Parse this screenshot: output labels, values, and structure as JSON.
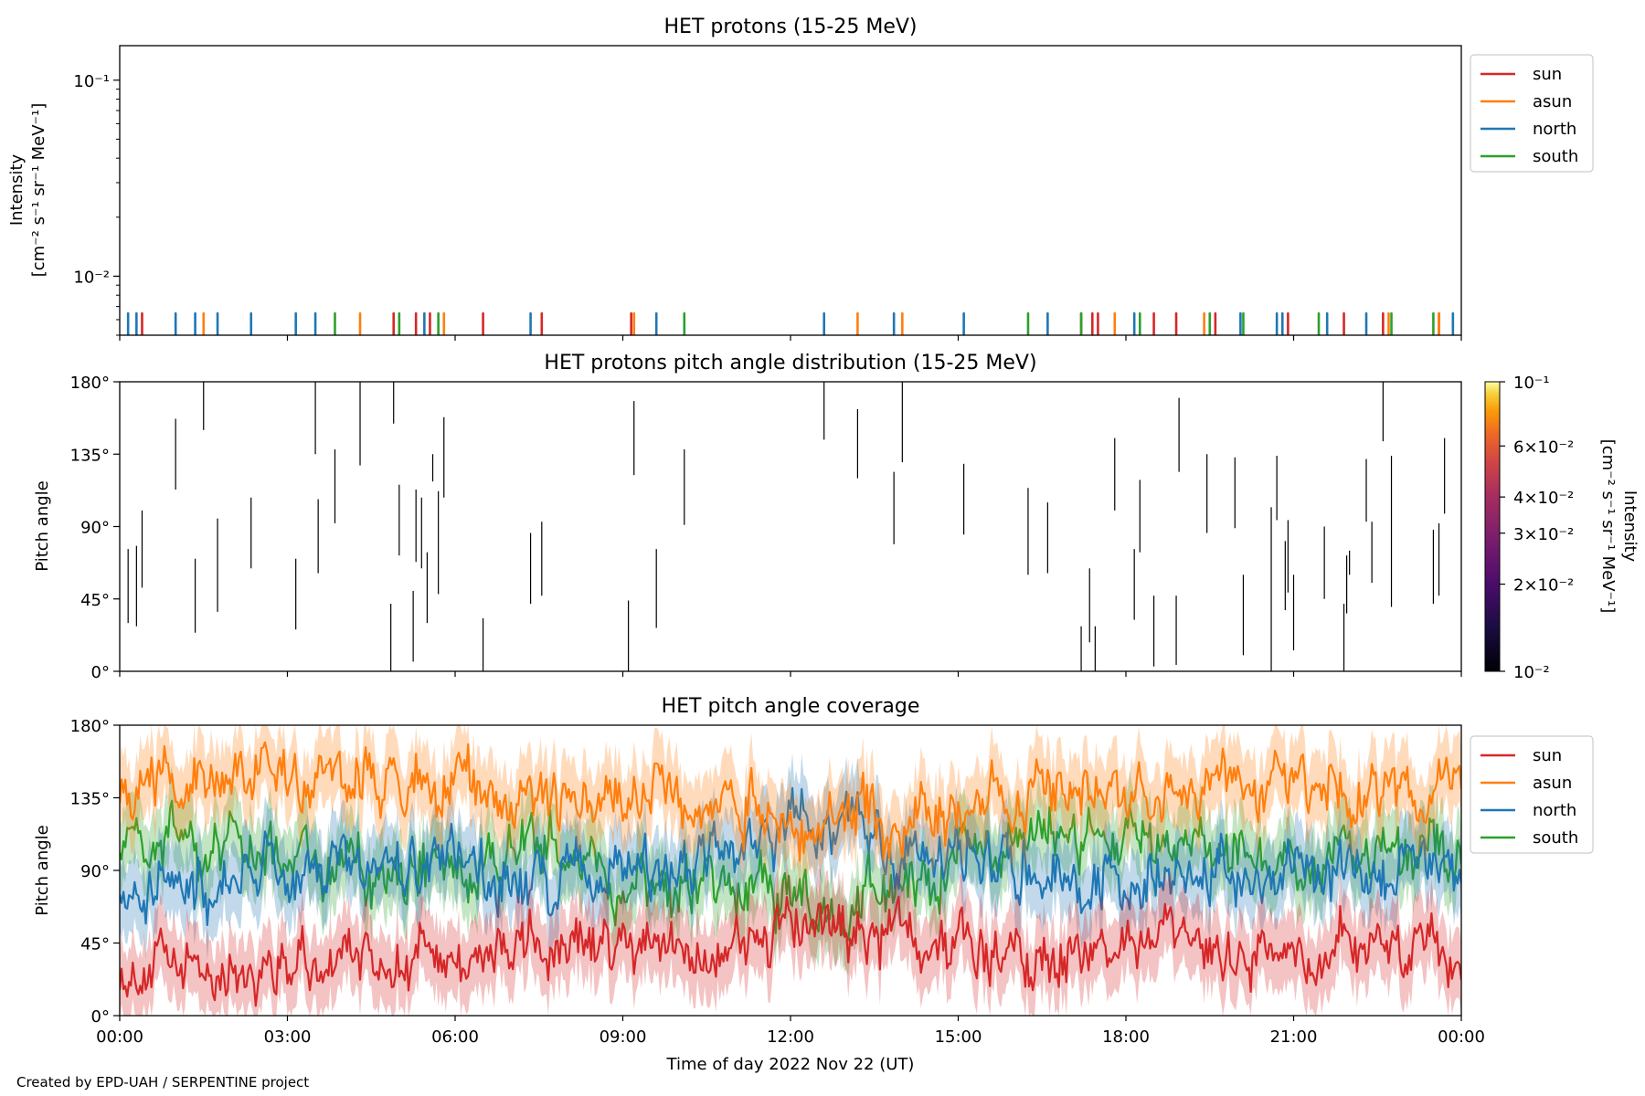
{
  "footer": "Created by EPD-UAH / SERPENTINE project",
  "colors": {
    "sun": "#d62728",
    "asun": "#ff7f0e",
    "north": "#1f77b4",
    "south": "#2ca02c"
  },
  "chart_data": [
    {
      "type": "line",
      "title": "HET protons (15-25 MeV)",
      "ylabel": [
        "Intensity",
        "[cm⁻² s⁻¹ sr⁻¹ MeV⁻¹]"
      ],
      "yscale": "log",
      "ylim": [
        0.005,
        0.15
      ],
      "yticks": [
        {
          "v": 0.1,
          "label": "10⁻¹"
        },
        {
          "v": 0.01,
          "label": "10⁻²"
        }
      ],
      "xlim_hours": [
        0,
        24
      ],
      "legend": {
        "position": "outside-right-top",
        "entries": [
          "sun",
          "asun",
          "north",
          "south"
        ]
      },
      "series": [
        {
          "name": "sun",
          "color": "#d62728",
          "spike_times_hours": [
            0.4,
            4.9,
            5.3,
            5.55,
            6.5,
            7.55,
            9.15,
            17.2,
            17.4,
            17.5,
            18.5,
            18.9,
            19.6,
            20.9,
            21.9,
            22.6,
            23.6
          ]
        },
        {
          "name": "asun",
          "color": "#ff7f0e",
          "spike_times_hours": [
            1.5,
            4.3,
            5.8,
            9.2,
            13.2,
            14.0,
            17.8,
            19.4,
            22.7,
            23.6
          ]
        },
        {
          "name": "north",
          "color": "#1f77b4",
          "spike_times_hours": [
            0.15,
            0.3,
            1.0,
            1.35,
            1.75,
            2.35,
            3.15,
            3.5,
            5.45,
            7.35,
            9.6,
            12.6,
            13.85,
            15.1,
            16.6,
            18.15,
            20.05,
            20.7,
            20.8,
            21.6,
            22.3,
            23.85
          ]
        },
        {
          "name": "south",
          "color": "#2ca02c",
          "spike_times_hours": [
            3.85,
            5.0,
            5.7,
            10.1,
            16.25,
            17.2,
            18.25,
            19.5,
            20.1,
            21.45,
            22.75,
            23.5
          ]
        }
      ],
      "spike_value": 0.0055
    },
    {
      "type": "heatmap",
      "title": "HET protons pitch angle distribution (15-25 MeV)",
      "ylabel": "Pitch angle",
      "ylim": [
        0,
        180
      ],
      "yticks": [
        "0°",
        "45°",
        "90°",
        "135°",
        "180°"
      ],
      "colorbar": {
        "label": [
          "Intensity",
          "[cm⁻² s⁻¹ sr⁻¹ MeV⁻¹]"
        ],
        "scale": "log",
        "range": [
          0.01,
          0.1
        ],
        "ticks": [
          {
            "v": 0.1,
            "label": "10⁻¹"
          },
          {
            "v": 0.06,
            "label": "6×10⁻²"
          },
          {
            "v": 0.04,
            "label": "4×10⁻²"
          },
          {
            "v": 0.03,
            "label": "3×10⁻²"
          },
          {
            "v": 0.02,
            "label": "2×10⁻²"
          },
          {
            "v": 0.01,
            "label": "10⁻²"
          }
        ],
        "colormap": "inferno"
      },
      "segments": [
        [
          0.15,
          30,
          76
        ],
        [
          0.3,
          28,
          78
        ],
        [
          0.4,
          52,
          100
        ],
        [
          1.0,
          113,
          157
        ],
        [
          1.35,
          24,
          70
        ],
        [
          1.5,
          150,
          180
        ],
        [
          1.75,
          37,
          95
        ],
        [
          2.35,
          64,
          108
        ],
        [
          3.15,
          26,
          70
        ],
        [
          3.5,
          135,
          180
        ],
        [
          3.55,
          61,
          107
        ],
        [
          3.85,
          92,
          138
        ],
        [
          4.3,
          128,
          180
        ],
        [
          4.85,
          0,
          42
        ],
        [
          4.9,
          154,
          180
        ],
        [
          5.0,
          72,
          116
        ],
        [
          5.25,
          6,
          50
        ],
        [
          5.3,
          68,
          113
        ],
        [
          5.4,
          64,
          108
        ],
        [
          5.5,
          30,
          74
        ],
        [
          5.6,
          118,
          135
        ],
        [
          5.7,
          48,
          112
        ],
        [
          5.8,
          108,
          158
        ],
        [
          6.5,
          0,
          33
        ],
        [
          7.35,
          42,
          86
        ],
        [
          7.55,
          47,
          93
        ],
        [
          9.1,
          0,
          44
        ],
        [
          9.2,
          122,
          168
        ],
        [
          9.6,
          27,
          76
        ],
        [
          10.1,
          91,
          138
        ],
        [
          12.6,
          144,
          180
        ],
        [
          13.2,
          120,
          163
        ],
        [
          13.85,
          79,
          124
        ],
        [
          14.0,
          130,
          180
        ],
        [
          15.1,
          85,
          129
        ],
        [
          16.25,
          60,
          114
        ],
        [
          16.6,
          61,
          105
        ],
        [
          17.2,
          0,
          28
        ],
        [
          17.35,
          18,
          64
        ],
        [
          17.45,
          0,
          28
        ],
        [
          17.8,
          100,
          145
        ],
        [
          18.15,
          32,
          76
        ],
        [
          18.25,
          74,
          119
        ],
        [
          18.5,
          3,
          47
        ],
        [
          18.9,
          4,
          47
        ],
        [
          18.95,
          124,
          170
        ],
        [
          19.45,
          86,
          135
        ],
        [
          19.95,
          89,
          133
        ],
        [
          20.1,
          10,
          60
        ],
        [
          20.6,
          0,
          102
        ],
        [
          20.7,
          94,
          134
        ],
        [
          20.85,
          38,
          81
        ],
        [
          20.9,
          49,
          94
        ],
        [
          21.0,
          13,
          60
        ],
        [
          21.55,
          45,
          90
        ],
        [
          21.9,
          0,
          42
        ],
        [
          21.95,
          36,
          72
        ],
        [
          22.0,
          60,
          75
        ],
        [
          22.3,
          93,
          132
        ],
        [
          22.4,
          55,
          93
        ],
        [
          22.6,
          143,
          180
        ],
        [
          22.75,
          40,
          134
        ],
        [
          23.5,
          42,
          88
        ],
        [
          23.6,
          47,
          92
        ],
        [
          23.7,
          98,
          145
        ]
      ]
    },
    {
      "type": "area",
      "title": "HET pitch angle coverage",
      "ylabel": "Pitch angle",
      "xlabel": "Time of day 2022 Nov 22 (UT)",
      "ylim": [
        0,
        180
      ],
      "yticks": [
        "0°",
        "45°",
        "90°",
        "135°",
        "180°"
      ],
      "x_tick_labels": [
        "00:00",
        "03:00",
        "06:00",
        "09:00",
        "12:00",
        "15:00",
        "18:00",
        "21:00",
        "00:00"
      ],
      "legend": {
        "position": "outside-right-top",
        "entries": [
          "sun",
          "asun",
          "north",
          "south"
        ]
      },
      "band_halfwidth_deg": 22,
      "series": [
        {
          "name": "sun",
          "color": "#d62728",
          "knots": [
            [
              0,
              30
            ],
            [
              1,
              28
            ],
            [
              2,
              30
            ],
            [
              3,
              32
            ],
            [
              4,
              33
            ],
            [
              5,
              35
            ],
            [
              6,
              34
            ],
            [
              7,
              40
            ],
            [
              8,
              40
            ],
            [
              9,
              40
            ],
            [
              10,
              42
            ],
            [
              11,
              42
            ],
            [
              12,
              60
            ],
            [
              13,
              47
            ],
            [
              14,
              55
            ],
            [
              15,
              45
            ],
            [
              16,
              38
            ],
            [
              17,
              38
            ],
            [
              18,
              45
            ],
            [
              19,
              40
            ],
            [
              20,
              38
            ],
            [
              21,
              37
            ],
            [
              22,
              40
            ],
            [
              23,
              40
            ],
            [
              24,
              35
            ]
          ]
        },
        {
          "name": "asun",
          "color": "#ff7f0e",
          "knots": [
            [
              0,
              150
            ],
            [
              1,
              148
            ],
            [
              2,
              150
            ],
            [
              3,
              148
            ],
            [
              4,
              147
            ],
            [
              5,
              143
            ],
            [
              6,
              145
            ],
            [
              7,
              135
            ],
            [
              8,
              130
            ],
            [
              9,
              138
            ],
            [
              10,
              135
            ],
            [
              11,
              140
            ],
            [
              12,
              110
            ],
            [
              13,
              125
            ],
            [
              14,
              118
            ],
            [
              15,
              128
            ],
            [
              16,
              142
            ],
            [
              17,
              140
            ],
            [
              18,
              135
            ],
            [
              19,
              140
            ],
            [
              20,
              148
            ],
            [
              21,
              140
            ],
            [
              22,
              140
            ],
            [
              23,
              140
            ],
            [
              24,
              145
            ]
          ]
        },
        {
          "name": "north",
          "color": "#1f77b4",
          "knots": [
            [
              0,
              80
            ],
            [
              1,
              82
            ],
            [
              2,
              85
            ],
            [
              3,
              88
            ],
            [
              4,
              90
            ],
            [
              5,
              88
            ],
            [
              6,
              95
            ],
            [
              7,
              80
            ],
            [
              8,
              85
            ],
            [
              9,
              88
            ],
            [
              10,
              95
            ],
            [
              11,
              95
            ],
            [
              12,
              120
            ],
            [
              13,
              125
            ],
            [
              14,
              95
            ],
            [
              15,
              97
            ],
            [
              16,
              95
            ],
            [
              17,
              90
            ],
            [
              18,
              88
            ],
            [
              19,
              92
            ],
            [
              20,
              88
            ],
            [
              21,
              90
            ],
            [
              22,
              90
            ],
            [
              23,
              92
            ],
            [
              24,
              88
            ]
          ]
        },
        {
          "name": "south",
          "color": "#2ca02c",
          "knots": [
            [
              0,
              110
            ],
            [
              1,
              105
            ],
            [
              2,
              100
            ],
            [
              3,
              95
            ],
            [
              4,
              92
            ],
            [
              5,
              95
            ],
            [
              6,
              90
            ],
            [
              7,
              105
            ],
            [
              8,
              100
            ],
            [
              9,
              85
            ],
            [
              10,
              85
            ],
            [
              11,
              80
            ],
            [
              12,
              75
            ],
            [
              13,
              60
            ],
            [
              14,
              80
            ],
            [
              15,
              95
            ],
            [
              16,
              105
            ],
            [
              17,
              110
            ],
            [
              18,
              112
            ],
            [
              19,
              108
            ],
            [
              20,
              100
            ],
            [
              21,
              100
            ],
            [
              22,
              100
            ],
            [
              23,
              98
            ],
            [
              24,
              95
            ]
          ]
        }
      ]
    }
  ]
}
